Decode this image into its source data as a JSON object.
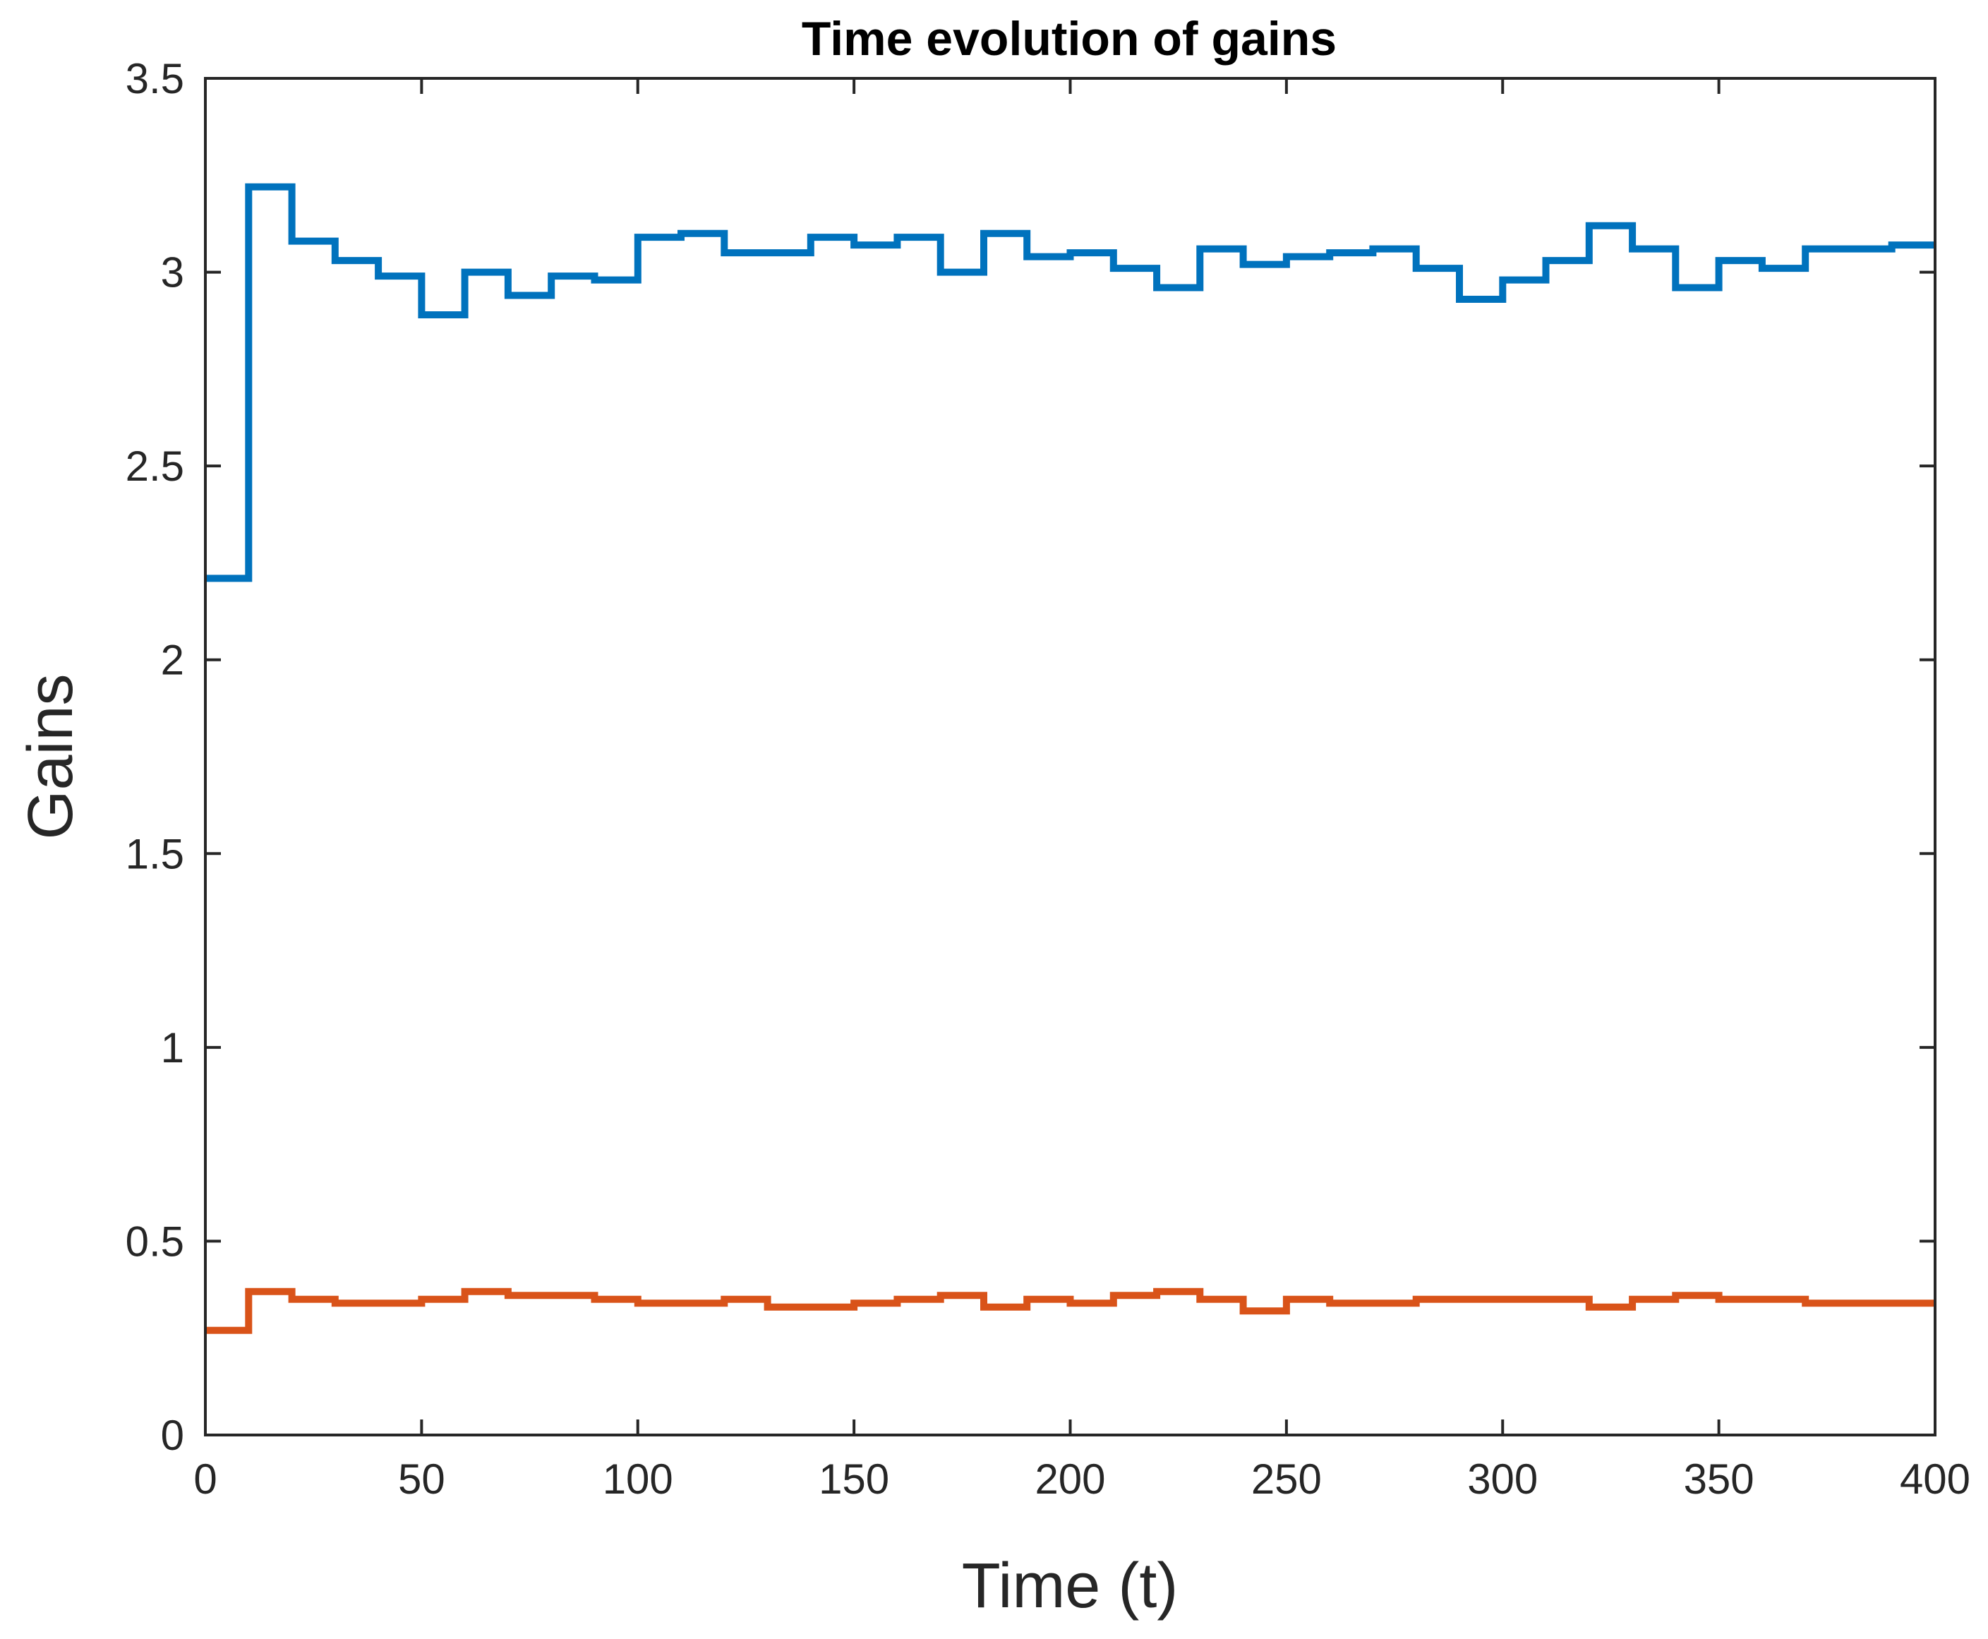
{
  "chart_data": {
    "type": "line",
    "step": "post",
    "title": "Time evolution of gains",
    "xlabel": "Time (t)",
    "ylabel": "Gains",
    "xlim": [
      0,
      400
    ],
    "ylim": [
      0,
      3.5
    ],
    "x_ticks": [
      0,
      50,
      100,
      150,
      200,
      250,
      300,
      350,
      400
    ],
    "x_tick_labels": [
      "0",
      "50",
      "100",
      "150",
      "200",
      "250",
      "300",
      "350",
      "400"
    ],
    "y_ticks": [
      0,
      0.5,
      1,
      1.5,
      2,
      2.5,
      3,
      3.5
    ],
    "y_tick_labels": [
      "0",
      "0.5",
      "1",
      "1.5",
      "2",
      "2.5",
      "3",
      "3.5"
    ],
    "grid": false,
    "x": [
      0,
      10,
      20,
      30,
      40,
      50,
      60,
      70,
      80,
      90,
      100,
      110,
      120,
      130,
      140,
      150,
      160,
      170,
      180,
      190,
      200,
      210,
      220,
      230,
      240,
      250,
      260,
      270,
      280,
      290,
      300,
      310,
      320,
      330,
      340,
      350,
      360,
      370,
      380,
      390,
      400
    ],
    "series": [
      {
        "color": "#0072BD",
        "values": [
          2.21,
          3.22,
          3.08,
          3.03,
          2.99,
          2.89,
          3.0,
          2.94,
          2.99,
          2.98,
          3.09,
          3.1,
          3.05,
          3.05,
          3.09,
          3.07,
          3.09,
          3.0,
          3.1,
          3.04,
          3.05,
          3.01,
          2.96,
          3.06,
          3.02,
          3.04,
          3.05,
          3.06,
          3.01,
          2.93,
          2.98,
          3.03,
          3.12,
          3.06,
          2.96,
          3.03,
          3.01,
          3.06,
          3.06,
          3.07,
          3.07
        ]
      },
      {
        "color": "#D95319",
        "values": [
          0.27,
          0.37,
          0.35,
          0.34,
          0.34,
          0.35,
          0.37,
          0.36,
          0.36,
          0.35,
          0.34,
          0.34,
          0.35,
          0.33,
          0.33,
          0.34,
          0.35,
          0.36,
          0.33,
          0.35,
          0.34,
          0.36,
          0.37,
          0.35,
          0.32,
          0.35,
          0.34,
          0.34,
          0.35,
          0.35,
          0.35,
          0.35,
          0.33,
          0.35,
          0.36,
          0.35,
          0.35,
          0.34,
          0.34,
          0.34,
          0.34
        ]
      }
    ]
  }
}
